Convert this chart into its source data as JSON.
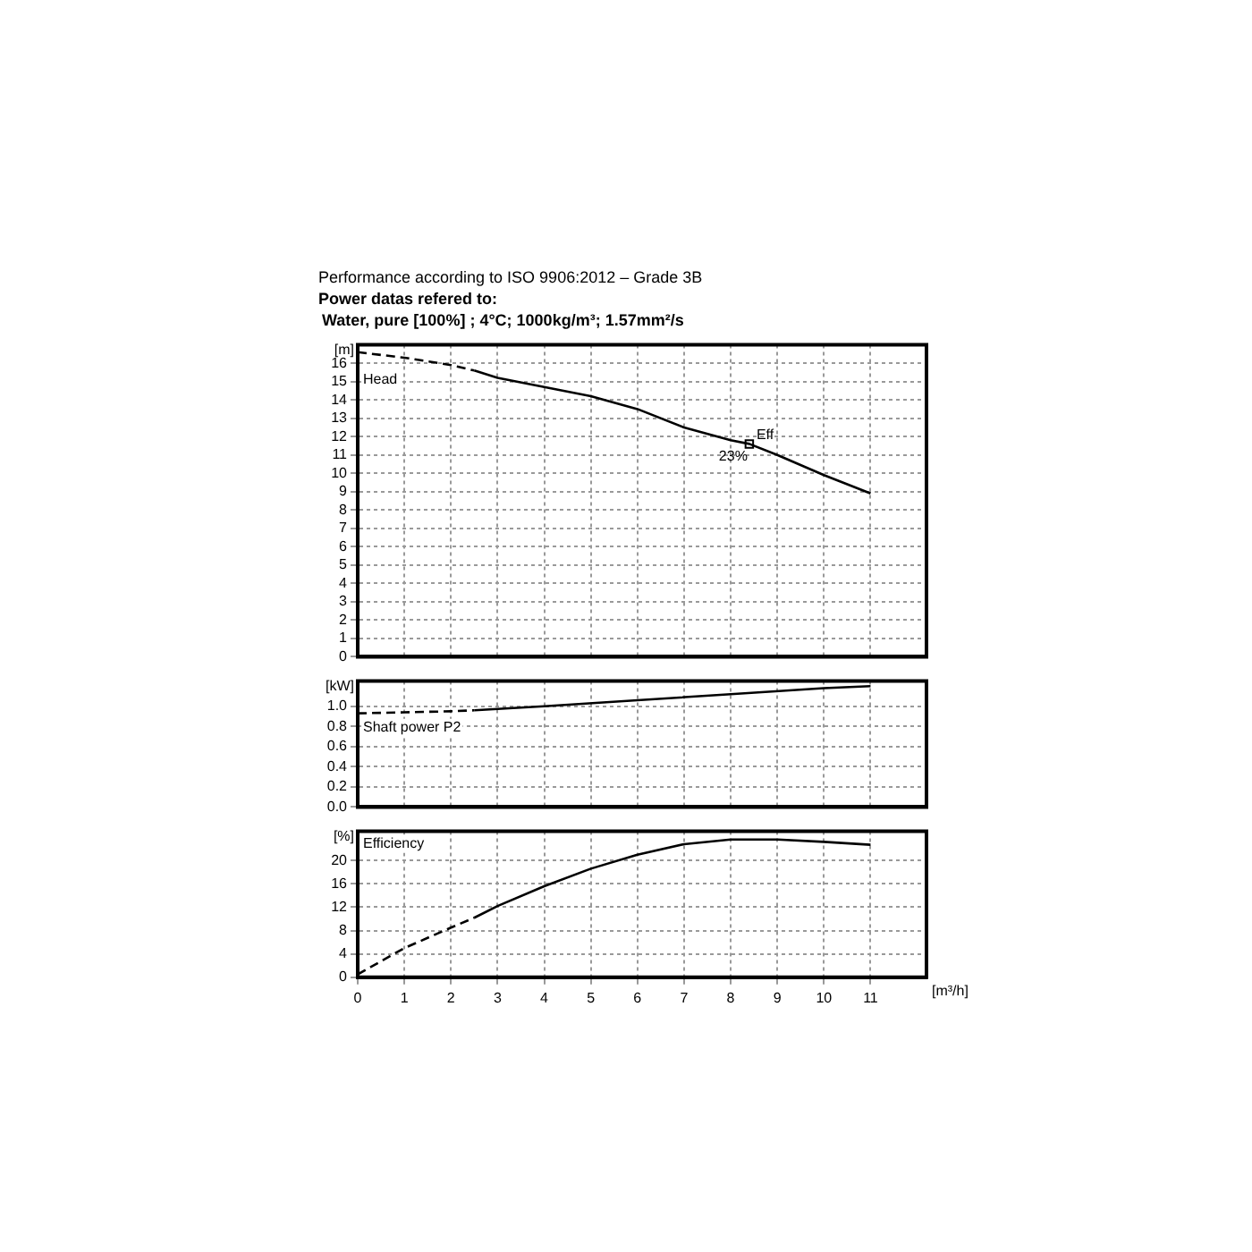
{
  "chart_data": [
    {
      "type": "line",
      "title": "Performance according to ISO 9906:2012 – Grade 3B",
      "subtitle": "Power datas refered to:",
      "ylabel": "[m]",
      "xlim": [
        0,
        12.2
      ],
      "xticks": [
        0,
        1,
        2,
        3,
        4,
        5,
        6,
        7,
        8,
        9,
        10,
        11
      ],
      "ylim": [
        0,
        17
      ],
      "yticks": [
        0,
        1,
        2,
        3,
        4,
        5,
        6,
        7,
        8,
        9,
        10,
        11,
        12,
        13,
        14,
        15,
        16
      ],
      "grid": true,
      "tick_labels": "y",
      "marker": "none",
      "annotations": [
        "Water, pure [100%] ; 4°C; 1000kg/m³; 1.57mm²/s",
        "Head",
        {
          "text": "Eff",
          "x": 8.4,
          "y": 11.6
        },
        {
          "text": "23%",
          "x": 8.4,
          "y": 11.6
        }
      ],
      "series": [
        {
          "color": "#000000",
          "line_style": "dashed",
          "x": [
            0,
            1,
            2,
            2.5
          ],
          "values": [
            16.6,
            16.3,
            15.9,
            15.6
          ]
        },
        {
          "color": "#000000",
          "line_style": "solid",
          "x": [
            2.5,
            3,
            4,
            5,
            6,
            7,
            8,
            8.4,
            9,
            10,
            11
          ],
          "values": [
            15.6,
            15.2,
            14.7,
            14.2,
            13.5,
            12.5,
            11.8,
            11.6,
            11.0,
            9.9,
            8.9
          ]
        },
        {
          "type": "scatter",
          "marker": "square",
          "color": "#000000",
          "x": [
            8.4
          ],
          "values": [
            11.6
          ]
        }
      ]
    },
    {
      "type": "line",
      "ylabel": "[kW]",
      "xlim": [
        0,
        12.2
      ],
      "xticks": [
        0,
        1,
        2,
        3,
        4,
        5,
        6,
        7,
        8,
        9,
        10,
        11
      ],
      "ylim": [
        0,
        1.25
      ],
      "yticks": [
        {
          "value": 0,
          "label": "0.0"
        },
        0.2,
        0.4,
        0.6,
        0.8,
        {
          "value": 1,
          "label": "1.0"
        }
      ],
      "grid": true,
      "tick_labels": "y",
      "marker": "none",
      "annotations": [
        "Shaft power P2"
      ],
      "series": [
        {
          "color": "#000000",
          "line_style": "dashed",
          "x": [
            0,
            1,
            2,
            2.5
          ],
          "values": [
            0.93,
            0.94,
            0.95,
            0.96
          ]
        },
        {
          "color": "#000000",
          "line_style": "solid",
          "x": [
            2.5,
            4,
            6,
            8,
            10,
            11
          ],
          "values": [
            0.96,
            1.0,
            1.06,
            1.12,
            1.18,
            1.2
          ]
        }
      ]
    },
    {
      "type": "line",
      "ylabel": "[%]",
      "xlabel": "[m³/h]",
      "xlim": [
        0,
        12.2
      ],
      "xticks": [
        0,
        1,
        2,
        3,
        4,
        5,
        6,
        7,
        8,
        9,
        10,
        11
      ],
      "ylim": [
        0,
        25
      ],
      "yticks": [
        0,
        4,
        8,
        12,
        16,
        20
      ],
      "grid": true,
      "marker": "none",
      "annotations": [
        "Efficiency"
      ],
      "series": [
        {
          "color": "#000000",
          "line_style": "dashed",
          "x": [
            0,
            1,
            2,
            2.5
          ],
          "values": [
            0.5,
            5,
            8.5,
            10.2
          ]
        },
        {
          "color": "#000000",
          "line_style": "solid",
          "x": [
            2.5,
            3,
            4,
            5,
            6,
            7,
            8,
            9,
            10,
            11
          ],
          "values": [
            10.2,
            12.2,
            15.6,
            18.6,
            21,
            22.8,
            23.6,
            23.6,
            23.2,
            22.7
          ]
        }
      ]
    }
  ]
}
